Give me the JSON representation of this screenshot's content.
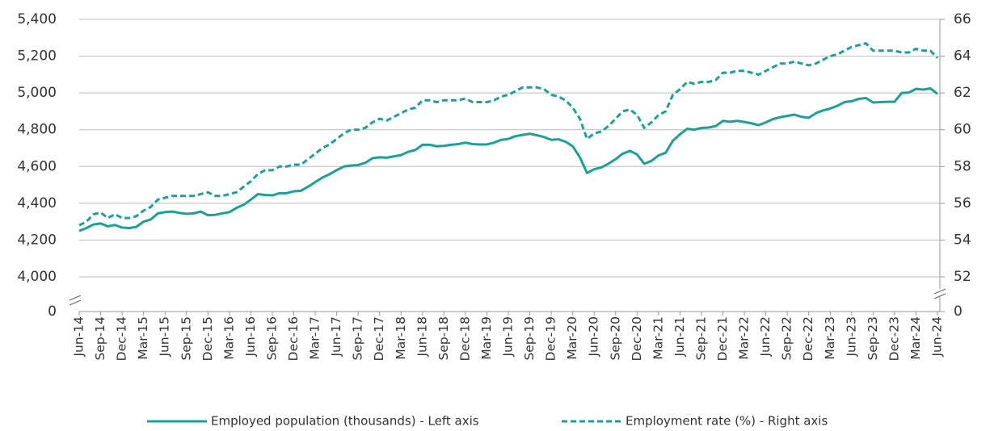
{
  "chart_data": {
    "type": "line",
    "categories": [
      "Jun-14",
      null,
      null,
      "Sep-14",
      null,
      null,
      "Dec-14",
      null,
      null,
      "Mar-15",
      null,
      null,
      "Jun-15",
      null,
      null,
      "Sep-15",
      null,
      null,
      "Dec-15",
      null,
      null,
      "Mar-16",
      null,
      null,
      "Jun-16",
      null,
      null,
      "Sep-16",
      null,
      null,
      "Dec-16",
      null,
      null,
      "Mar-17",
      null,
      null,
      "Jun-17",
      null,
      null,
      "Sep-17",
      null,
      null,
      "Dec-17",
      null,
      null,
      "Mar-18",
      null,
      null,
      "Jun-18",
      null,
      null,
      "Sep-18",
      null,
      null,
      "Dec-18",
      null,
      null,
      "Mar-19",
      null,
      null,
      "Jun-19",
      null,
      null,
      "Sep-19",
      null,
      null,
      "Dec-19",
      null,
      null,
      "Mar-20",
      null,
      null,
      "Jun-20",
      null,
      null,
      "Sep-20",
      null,
      null,
      "Dec-20",
      null,
      null,
      "Mar-21",
      null,
      null,
      "Jun-21",
      null,
      null,
      "Sep-21",
      null,
      null,
      "Dec-21",
      null,
      null,
      "Mar-22",
      null,
      null,
      "Jun-22",
      null,
      null,
      "Sep-22",
      null,
      null,
      "Dec-22",
      null,
      null,
      "Mar-23",
      null,
      null,
      "Jun-23",
      null,
      null,
      "Sep-23",
      null,
      null,
      "Dec-23",
      null,
      null,
      "Mar-24",
      null,
      null,
      "Jun-24"
    ],
    "series": [
      {
        "name": "Employed population (thousands) - Left axis",
        "color": "#1aa394",
        "dash": false,
        "axis": "y",
        "values": [
          4250,
          4265,
          4285,
          4290,
          4275,
          4282,
          4268,
          4265,
          4272,
          4300,
          4312,
          4345,
          4352,
          4355,
          4348,
          4343,
          4345,
          4355,
          4335,
          4337,
          4345,
          4352,
          4375,
          4392,
          4420,
          4450,
          4445,
          4443,
          4455,
          4455,
          4465,
          4468,
          4490,
          4515,
          4540,
          4558,
          4580,
          4600,
          4605,
          4608,
          4620,
          4645,
          4650,
          4648,
          4655,
          4662,
          4680,
          4690,
          4718,
          4718,
          4710,
          4712,
          4718,
          4722,
          4730,
          4722,
          4720,
          4720,
          4730,
          4745,
          4750,
          4765,
          4772,
          4778,
          4770,
          4760,
          4745,
          4748,
          4735,
          4710,
          4650,
          4565,
          4585,
          4595,
          4615,
          4640,
          4670,
          4685,
          4665,
          4615,
          4630,
          4660,
          4675,
          4740,
          4775,
          4805,
          4800,
          4810,
          4812,
          4820,
          4848,
          4843,
          4848,
          4842,
          4835,
          4825,
          4840,
          4858,
          4868,
          4875,
          4882,
          4870,
          4865,
          4890,
          4905,
          4915,
          4930,
          4950,
          4955,
          4968,
          4972,
          4948,
          4950,
          4952,
          4952,
          5000,
          5002,
          5022,
          5018,
          5025,
          4995
        ]
      },
      {
        "name": "Employment rate (%) - Right axis",
        "color": "#1aa394",
        "dash": true,
        "axis": "y2",
        "values": [
          54.8,
          55.0,
          55.4,
          55.5,
          55.2,
          55.4,
          55.2,
          55.2,
          55.3,
          55.6,
          55.8,
          56.2,
          56.3,
          56.4,
          56.4,
          56.4,
          56.4,
          56.5,
          56.6,
          56.4,
          56.4,
          56.5,
          56.6,
          56.9,
          57.2,
          57.6,
          57.8,
          57.8,
          58.0,
          58.0,
          58.1,
          58.1,
          58.4,
          58.7,
          59.0,
          59.2,
          59.5,
          59.8,
          60.0,
          60.0,
          60.1,
          60.4,
          60.6,
          60.5,
          60.7,
          60.9,
          61.1,
          61.2,
          61.6,
          61.6,
          61.5,
          61.6,
          61.6,
          61.6,
          61.7,
          61.5,
          61.5,
          61.5,
          61.6,
          61.8,
          61.9,
          62.1,
          62.3,
          62.3,
          62.3,
          62.2,
          61.9,
          61.8,
          61.6,
          61.2,
          60.6,
          59.5,
          59.8,
          59.9,
          60.2,
          60.6,
          61.0,
          61.1,
          60.8,
          60.1,
          60.4,
          60.8,
          61.0,
          61.9,
          62.2,
          62.6,
          62.5,
          62.6,
          62.6,
          62.7,
          63.1,
          63.1,
          63.2,
          63.2,
          63.1,
          63.0,
          63.2,
          63.4,
          63.6,
          63.6,
          63.7,
          63.6,
          63.5,
          63.6,
          63.8,
          64.0,
          64.1,
          64.3,
          64.5,
          64.6,
          64.7,
          64.3,
          64.3,
          64.3,
          64.3,
          64.2,
          64.2,
          64.4,
          64.3,
          64.3,
          63.9
        ]
      }
    ],
    "ylim": [
      0,
      5400
    ],
    "yticks": [
      0,
      {
        "value": 4000,
        "label": "4,000"
      },
      {
        "value": 4200,
        "label": "4,200"
      },
      {
        "value": 4400,
        "label": "4,400"
      },
      {
        "value": 4600,
        "label": "4,600"
      },
      {
        "value": 4800,
        "label": "4,800"
      },
      {
        "value": 5000,
        "label": "5,000"
      },
      {
        "value": 5200,
        "label": "5,200"
      },
      {
        "value": 5400,
        "label": "5,400"
      }
    ],
    "y2lim": [
      0,
      66
    ],
    "y2ticks": [
      0,
      52,
      54,
      56,
      58,
      60,
      62,
      64,
      66
    ],
    "axis_break": true,
    "grid": true
  }
}
